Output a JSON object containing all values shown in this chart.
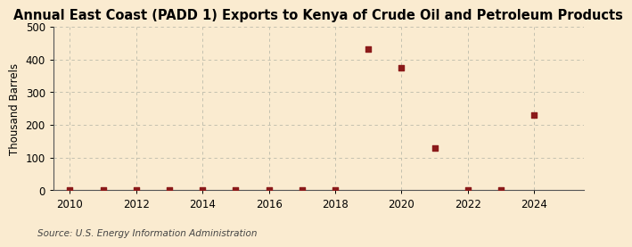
{
  "title": "Annual East Coast (PADD 1) Exports to Kenya of Crude Oil and Petroleum Products",
  "ylabel": "Thousand Barrels",
  "source": "Source: U.S. Energy Information Administration",
  "background_color": "#faebd0",
  "plot_bg_color": "#faebd0",
  "marker_color": "#8b1a1a",
  "years": [
    2010,
    2011,
    2012,
    2013,
    2014,
    2015,
    2016,
    2017,
    2018,
    2019,
    2020,
    2021,
    2022,
    2023,
    2024
  ],
  "values": [
    0,
    0,
    0,
    0,
    0,
    0,
    0,
    0,
    0,
    432,
    375,
    130,
    0,
    0,
    230
  ],
  "ylim": [
    0,
    500
  ],
  "yticks": [
    0,
    100,
    200,
    300,
    400,
    500
  ],
  "xlim": [
    2009.5,
    2025.5
  ],
  "xticks": [
    2010,
    2012,
    2014,
    2016,
    2018,
    2020,
    2022,
    2024
  ],
  "title_fontsize": 10.5,
  "label_fontsize": 8.5,
  "tick_fontsize": 8.5,
  "source_fontsize": 7.5
}
